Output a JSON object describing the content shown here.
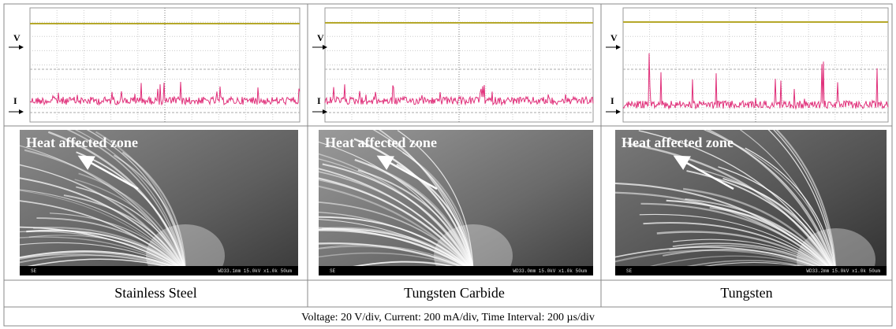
{
  "panels": [
    {
      "voltage_label": "V",
      "current_label": "I",
      "annotation": "Heat affected zone",
      "sem_mode": "SE",
      "sem_info": "WD33.1mm 15.0kV x1.0k 50um",
      "material": "Stainless Steel"
    },
    {
      "voltage_label": "V",
      "current_label": "I",
      "annotation": "Heat affected zone",
      "sem_mode": "SE",
      "sem_info": "WD33.0mm 15.0kV x1.0k 50um",
      "material": "Tungsten Carbide"
    },
    {
      "voltage_label": "V",
      "current_label": "I",
      "annotation": "Heat affected zone",
      "sem_mode": "SE",
      "sem_info": "WD33.2mm 15.0kV x1.0k 50um",
      "material": "Tungsten"
    }
  ],
  "caption": "Voltage: 20 V/div, Current: 200 mA/div, Time Interval: 200 µs/div"
}
